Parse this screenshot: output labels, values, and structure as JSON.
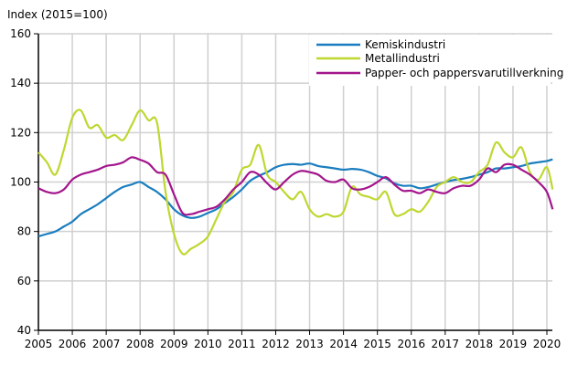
{
  "chart_data": {
    "type": "line",
    "title": "",
    "ylabel": "Index (2015=100)",
    "xlabel": "",
    "ylim": [
      40,
      160
    ],
    "yticks": [
      40,
      60,
      80,
      100,
      120,
      140,
      160
    ],
    "xlim": [
      2005,
      2020.2
    ],
    "xticks": [
      "2005",
      "2006",
      "2007",
      "2008",
      "2009",
      "2010",
      "2011",
      "2012",
      "2013",
      "2014",
      "2015",
      "2016",
      "2017",
      "2018",
      "2019",
      "2020"
    ],
    "grid": true,
    "legend_position": "top-right",
    "x": [
      2005.0,
      2005.25,
      2005.5,
      2005.75,
      2006.0,
      2006.25,
      2006.5,
      2006.75,
      2007.0,
      2007.25,
      2007.5,
      2007.75,
      2008.0,
      2008.25,
      2008.5,
      2008.75,
      2009.0,
      2009.25,
      2009.5,
      2009.75,
      2010.0,
      2010.25,
      2010.5,
      2010.75,
      2011.0,
      2011.25,
      2011.5,
      2011.75,
      2012.0,
      2012.25,
      2012.5,
      2012.75,
      2013.0,
      2013.25,
      2013.5,
      2013.75,
      2014.0,
      2014.25,
      2014.5,
      2014.75,
      2015.0,
      2015.25,
      2015.5,
      2015.75,
      2016.0,
      2016.25,
      2016.5,
      2016.75,
      2017.0,
      2017.25,
      2017.5,
      2017.75,
      2018.0,
      2018.25,
      2018.5,
      2018.75,
      2019.0,
      2019.25,
      2019.5,
      2019.75,
      2020.0,
      2020.17
    ],
    "series": [
      {
        "name": "Kemiskindustri",
        "color": "#1a7dbf",
        "values": [
          78,
          79,
          80,
          82,
          84,
          87,
          89,
          91,
          93.5,
          96,
          98,
          99,
          100,
          98,
          96,
          93,
          89,
          86.5,
          85.5,
          86,
          87.5,
          89,
          91.5,
          94,
          97,
          100.5,
          102.5,
          104,
          106,
          107,
          107.3,
          107,
          107.5,
          106.5,
          106,
          105.5,
          105,
          105.3,
          105,
          104,
          102.5,
          101.5,
          99.5,
          98.5,
          98.5,
          97.5,
          98,
          99,
          100,
          100.8,
          101.3,
          102,
          103,
          104,
          105.5,
          105.5,
          106,
          106.5,
          107.5,
          108,
          108.5,
          109.2
        ]
      },
      {
        "name": "Metallindustri",
        "color": "#bfd730",
        "values": [
          112,
          108,
          103,
          113,
          126,
          129,
          122,
          123,
          118,
          119,
          117,
          123,
          129,
          125,
          124,
          96,
          79,
          71,
          73,
          75,
          78,
          85,
          92,
          96,
          105,
          107,
          115,
          103,
          100,
          96,
          93,
          96,
          89,
          86,
          87,
          86,
          88,
          98,
          95,
          94,
          93,
          96,
          87,
          87,
          89,
          88,
          92,
          98,
          100,
          102,
          100,
          100,
          104,
          107,
          116,
          112,
          110,
          114,
          104,
          101,
          106,
          97
        ]
      },
      {
        "name": "Papper- och pappersvarutillverkning",
        "color": "#a3158c",
        "values": [
          97.5,
          96,
          95.5,
          97,
          101,
          103,
          104,
          105,
          106.5,
          107,
          108,
          110,
          109,
          107.5,
          104,
          103,
          95,
          87.5,
          87,
          88,
          89,
          90,
          93,
          97,
          100,
          104,
          103,
          99.5,
          97,
          100,
          103,
          104.5,
          104,
          103,
          100.5,
          100,
          101,
          97.5,
          97,
          98,
          100,
          102,
          99,
          96.5,
          96.5,
          95.5,
          97,
          96,
          95.5,
          97.5,
          98.5,
          98.5,
          101,
          105.5,
          104,
          107,
          107,
          105,
          103,
          100,
          96,
          89
        ]
      }
    ]
  },
  "legend": {
    "items": [
      {
        "label": "Kemiskindustri",
        "color": "#1a7dbf"
      },
      {
        "label": "Metallindustri",
        "color": "#bfd730"
      },
      {
        "label": "Papper- och pappersvarutillverkning",
        "color": "#a3158c"
      }
    ]
  },
  "colors": {
    "grid": "#d0d0d0",
    "axis": "#000000"
  }
}
